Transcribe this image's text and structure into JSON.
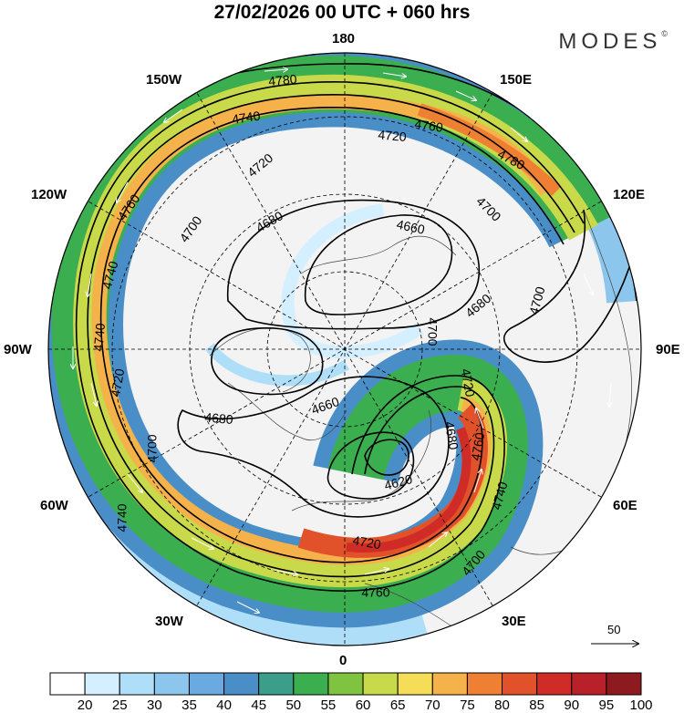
{
  "header": {
    "title": "27/02/2026  00 UTC  + 060 hrs",
    "brand": "MODES",
    "brand_mark": "©"
  },
  "longitude_labels": [
    "180",
    "150E",
    "120E",
    "90E",
    "60E",
    "30E",
    "0",
    "30W",
    "60W",
    "90W",
    "120W",
    "150W"
  ],
  "wind_scale": {
    "value": "50",
    "icon": "arrow-right-icon"
  },
  "contour_labels": [
    "4780",
    "4740",
    "4720",
    "4760",
    "4780",
    "4700",
    "4740",
    "4680",
    "4660",
    "4720",
    "4680",
    "4700",
    "4760",
    "4700",
    "4700",
    "4740",
    "4720",
    "4700",
    "4680",
    "4660",
    "4620",
    "4720",
    "4680",
    "4740",
    "4760",
    "4700",
    "4760",
    "4740",
    "4720"
  ],
  "colorbar": {
    "labels": [
      "20",
      "25",
      "30",
      "35",
      "40",
      "45",
      "50",
      "55",
      "60",
      "65",
      "70",
      "75",
      "80",
      "85",
      "90",
      "95",
      "100"
    ],
    "colors": [
      "#ffffff",
      "#d4efff",
      "#afdff8",
      "#8cc6ec",
      "#6aaae0",
      "#4a8ec8",
      "#3b9e8a",
      "#3bae4f",
      "#7fc340",
      "#c8d94a",
      "#f5dd58",
      "#f5b24a",
      "#ef7f33",
      "#e2522a",
      "#d02c27",
      "#b8202a",
      "#8c1a1f"
    ]
  }
}
